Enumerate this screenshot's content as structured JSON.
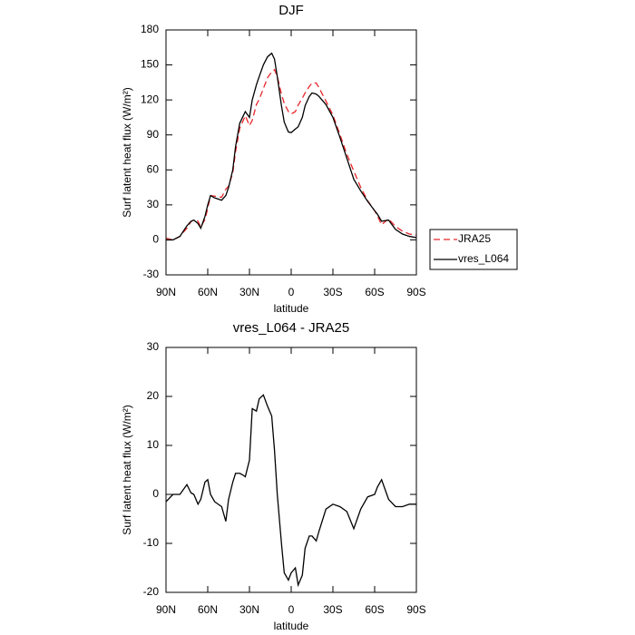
{
  "chart_data": [
    {
      "type": "line",
      "title": "DJF",
      "xlabel": "latitude",
      "ylabel": "Surf latent heat flux (W/m²)",
      "x": [
        90,
        85,
        80,
        75,
        72,
        70,
        67,
        65,
        62,
        60,
        58,
        55,
        50,
        47,
        45,
        42,
        40,
        37,
        35,
        33,
        30,
        28,
        25,
        23,
        20,
        17,
        14,
        12,
        10,
        7,
        5,
        2,
        0,
        -3,
        -5,
        -8,
        -10,
        -13,
        -15,
        -18,
        -20,
        -25,
        -30,
        -35,
        -40,
        -45,
        -50,
        -55,
        -60,
        -62,
        -65,
        -70,
        -75,
        -80,
        -85,
        -90
      ],
      "series": [
        {
          "name": "JRA25",
          "color": "#e8262a",
          "style": "dashed",
          "values": [
            1.5,
            0,
            3,
            10,
            15.7,
            17,
            16,
            11,
            17.5,
            27,
            38,
            37.5,
            36.5,
            43.5,
            46,
            57.5,
            75.7,
            95.7,
            101,
            106.4,
            98,
            102.5,
            116,
            120.5,
            129.7,
            139,
            144,
            146,
            140,
            125,
            117,
            110,
            108,
            110,
            115.5,
            121.5,
            126,
            131.5,
            134.5,
            134.5,
            130.5,
            119,
            107,
            90.5,
            73.5,
            59,
            45,
            33.5,
            25,
            20.5,
            13,
            18,
            11.5,
            7.5,
            5,
            4
          ]
        },
        {
          "name": "vres_L064",
          "color": "#000000",
          "style": "solid",
          "values": [
            0,
            0,
            3,
            12,
            16,
            17,
            14,
            10,
            20,
            30,
            38,
            36,
            34,
            38,
            45,
            60,
            80,
            100,
            105,
            110,
            105,
            120,
            133,
            140,
            150,
            157,
            160,
            155,
            140,
            115,
            101,
            92.5,
            92,
            95,
            97,
            105,
            115,
            123,
            126,
            125,
            123,
            116,
            105,
            88,
            70,
            52,
            42,
            33,
            25,
            22,
            16,
            17,
            9,
            5,
            3,
            2
          ]
        }
      ],
      "xlim": [
        90,
        -90
      ],
      "xticks": [
        {
          "value": 90,
          "label": "90N"
        },
        {
          "value": 60,
          "label": "60N"
        },
        {
          "value": 30,
          "label": "30N"
        },
        0,
        {
          "value": -30,
          "label": "30S"
        },
        {
          "value": -60,
          "label": "60S"
        },
        {
          "value": -90,
          "label": "90S"
        }
      ],
      "ylim": [
        -30,
        180
      ],
      "yticks": [
        -30,
        0,
        30,
        60,
        90,
        120,
        150,
        180
      ],
      "legend": "right"
    },
    {
      "type": "line",
      "title": "vres_L064 - JRA25",
      "xlabel": "latitude",
      "ylabel": "Surf latent heat flux (W/m²)",
      "x": [
        90,
        85,
        80,
        75,
        72,
        70,
        67,
        65,
        62,
        60,
        58,
        55,
        50,
        47,
        45,
        42,
        40,
        37,
        35,
        33,
        30,
        28,
        25,
        23,
        20,
        17,
        14,
        12,
        10,
        7,
        5,
        2,
        0,
        -3,
        -5,
        -8,
        -10,
        -13,
        -15,
        -18,
        -20,
        -25,
        -30,
        -35,
        -40,
        -45,
        -50,
        -55,
        -60,
        -62,
        -65,
        -70,
        -75,
        -80,
        -85,
        -90
      ],
      "values": [
        -1.5,
        0,
        0,
        2,
        0.3,
        0,
        -2,
        -1,
        2.5,
        3,
        0,
        -1.5,
        -2.5,
        -5.5,
        -1,
        2.5,
        4.3,
        4.3,
        4,
        3.6,
        7,
        17.5,
        17,
        19.5,
        20.3,
        18,
        16,
        9,
        0,
        -10,
        -16,
        -17.5,
        -16,
        -15,
        -18.5,
        -16.5,
        -11,
        -8.5,
        -8.5,
        -9.5,
        -7.5,
        -3,
        -2,
        -2.5,
        -3.5,
        -7,
        -3,
        -0.5,
        0,
        1.5,
        3,
        -1,
        -2.5,
        -2.5,
        -2,
        -2
      ],
      "color": "#000000",
      "xlim": [
        90,
        -90
      ],
      "xticks": [
        {
          "value": 90,
          "label": "90N"
        },
        {
          "value": 60,
          "label": "60N"
        },
        {
          "value": 30,
          "label": "30N"
        },
        0,
        {
          "value": -30,
          "label": "30S"
        },
        {
          "value": -60,
          "label": "60S"
        },
        {
          "value": -90,
          "label": "90S"
        }
      ],
      "ylim": [
        -20,
        30
      ],
      "yticks": [
        -20,
        -10,
        0,
        10,
        20,
        30
      ]
    }
  ]
}
